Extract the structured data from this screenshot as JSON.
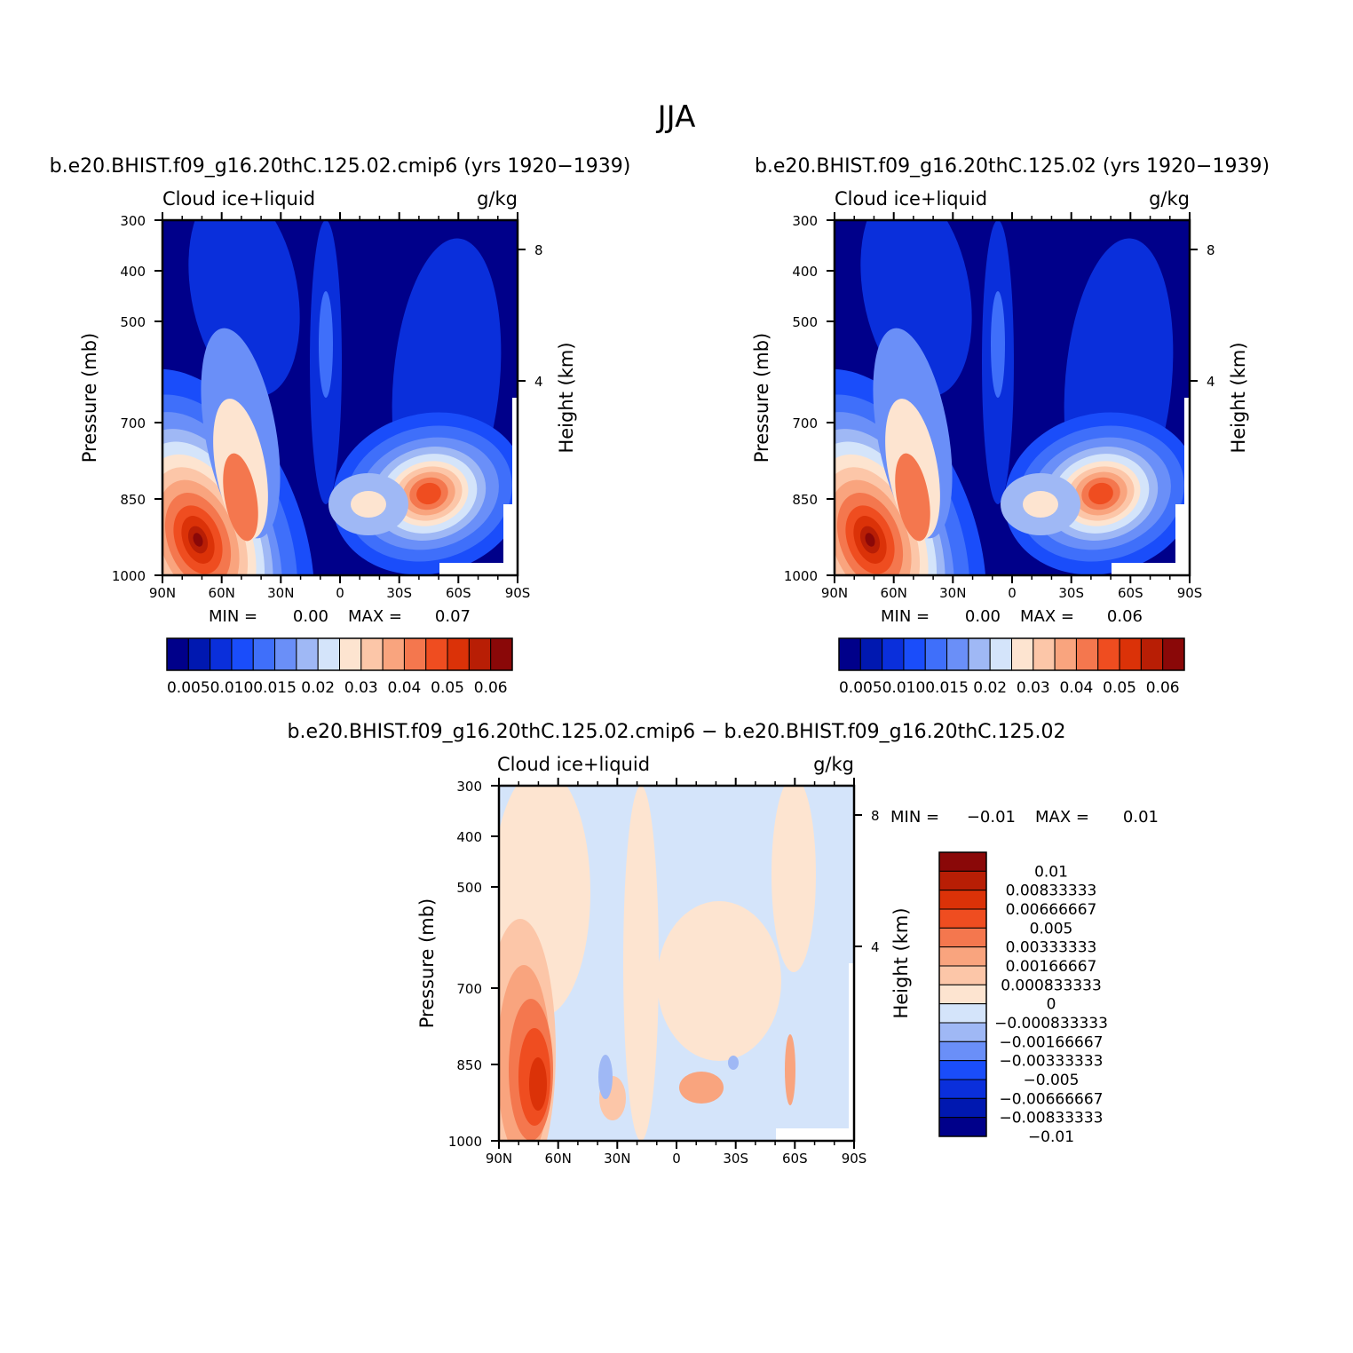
{
  "figure": {
    "title": "JJA"
  },
  "colors": {
    "abs_palette": [
      "#00008a",
      "#0018b0",
      "#0a2fdb",
      "#1a4dfa",
      "#3f6ffa",
      "#6a8ff8",
      "#9fb8f5",
      "#d4e4fa",
      "#fde4d0",
      "#fcc6a8",
      "#f9a47e",
      "#f4774e",
      "#ef4d20",
      "#db3208",
      "#b81e05",
      "#8a0808"
    ],
    "diff_palette": [
      "#00008a",
      "#0018b0",
      "#0a2fdb",
      "#1a4dfa",
      "#6a8ff8",
      "#9fb8f5",
      "#d4e4fa",
      "#fde4d0",
      "#fcc6a8",
      "#f9a47e",
      "#f4774e",
      "#ef4d20",
      "#db3208",
      "#b81e05",
      "#8a0808"
    ]
  },
  "chart_data": [
    {
      "type": "heatmap",
      "title": "b.e20.BHIST.f09_g16.20thC.125.02.cmip6 (yrs 1920−1939)",
      "left_label": "Cloud ice+liquid",
      "right_label": "g/kg",
      "xlabel": "",
      "ylabel": "Pressure (mb)",
      "ylabel_right": "Height (km)",
      "x_ticks": [
        "90N",
        "60N",
        "30N",
        "0",
        "30S",
        "60S",
        "90S"
      ],
      "y_ticks": [
        "300",
        "400",
        "500",
        "700",
        "850",
        "1000"
      ],
      "y_ticks_right": [
        "8",
        "4"
      ],
      "min_label": "MIN =",
      "min_value": "0.00",
      "max_label": "MAX =",
      "max_value": "0.07",
      "colorbar_labels": [
        "0.005",
        "0.010",
        "0.015",
        "0.02",
        "0.03",
        "0.04",
        "0.05",
        "0.06"
      ]
    },
    {
      "type": "heatmap",
      "title": "b.e20.BHIST.f09_g16.20thC.125.02 (yrs 1920−1939)",
      "left_label": "Cloud ice+liquid",
      "right_label": "g/kg",
      "xlabel": "",
      "ylabel": "Pressure (mb)",
      "ylabel_right": "Height (km)",
      "x_ticks": [
        "90N",
        "60N",
        "30N",
        "0",
        "30S",
        "60S",
        "90S"
      ],
      "y_ticks": [
        "300",
        "400",
        "500",
        "700",
        "850",
        "1000"
      ],
      "y_ticks_right": [
        "8",
        "4"
      ],
      "min_label": "MIN =",
      "min_value": "0.00",
      "max_label": "MAX =",
      "max_value": "0.06",
      "colorbar_labels": [
        "0.005",
        "0.010",
        "0.015",
        "0.02",
        "0.03",
        "0.04",
        "0.05",
        "0.06"
      ]
    },
    {
      "type": "heatmap",
      "title": "b.e20.BHIST.f09_g16.20thC.125.02.cmip6 − b.e20.BHIST.f09_g16.20thC.125.02",
      "left_label": "Cloud ice+liquid",
      "right_label": "g/kg",
      "xlabel": "",
      "ylabel": "Pressure (mb)",
      "ylabel_right": "Height (km)",
      "x_ticks": [
        "90N",
        "60N",
        "30N",
        "0",
        "30S",
        "60S",
        "90S"
      ],
      "y_ticks": [
        "300",
        "400",
        "500",
        "700",
        "850",
        "1000"
      ],
      "y_ticks_right": [
        "8",
        "4"
      ],
      "min_label": "MIN =",
      "min_value": "−0.01",
      "max_label": "MAX =",
      "max_value": "0.01",
      "colorbar_labels": [
        "0.01",
        "0.00833333",
        "0.00666667",
        "0.005",
        "0.00333333",
        "0.00166667",
        "0.000833333",
        "0",
        "−0.000833333",
        "−0.00166667",
        "−0.00333333",
        "−0.005",
        "−0.00666667",
        "−0.00833333",
        "−0.01"
      ]
    }
  ]
}
